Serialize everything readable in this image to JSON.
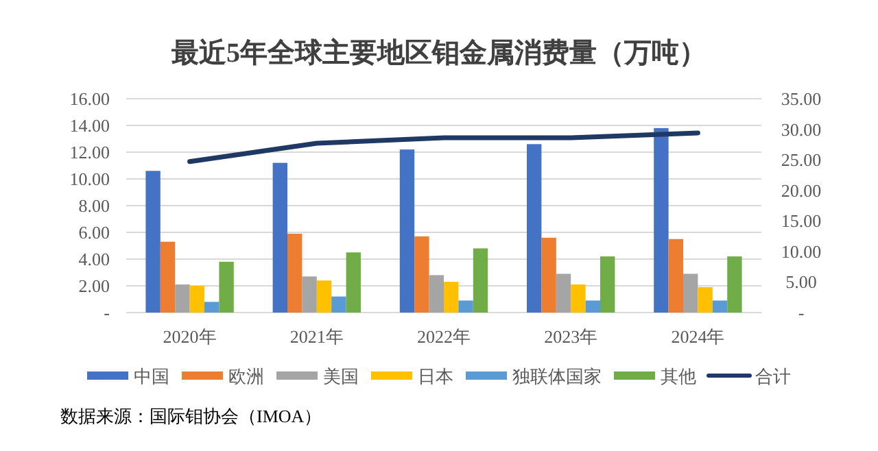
{
  "chart_data": {
    "type": "bar",
    "title": "最近5年全球主要地区钼金属消费量（万吨）",
    "categories": [
      "2020年",
      "2021年",
      "2022年",
      "2023年",
      "2024年"
    ],
    "series": [
      {
        "name": "中国",
        "color": "#4472c4",
        "values": [
          10.6,
          11.2,
          12.2,
          12.6,
          13.8
        ]
      },
      {
        "name": "欧洲",
        "color": "#ed7d31",
        "values": [
          5.3,
          5.9,
          5.7,
          5.6,
          5.5
        ]
      },
      {
        "name": "美国",
        "color": "#a5a5a5",
        "values": [
          2.1,
          2.7,
          2.8,
          2.9,
          2.9
        ]
      },
      {
        "name": "日本",
        "color": "#ffc000",
        "values": [
          2.0,
          2.4,
          2.3,
          2.1,
          1.9
        ]
      },
      {
        "name": "独联体国家",
        "color": "#5b9bd5",
        "values": [
          0.8,
          1.2,
          0.9,
          0.9,
          0.9
        ]
      },
      {
        "name": "其他",
        "color": "#70ad47",
        "values": [
          3.8,
          4.5,
          4.8,
          4.2,
          4.2
        ]
      },
      {
        "name": "合计",
        "color": "#203864",
        "type": "line",
        "axis": "y2",
        "values": [
          24.7,
          27.7,
          28.6,
          28.6,
          29.4
        ]
      }
    ],
    "ylim": [
      0,
      16
    ],
    "yticks": [
      {
        "value": 0,
        "label": "-"
      },
      {
        "value": 2,
        "label": "2.00"
      },
      {
        "value": 4,
        "label": "4.00"
      },
      {
        "value": 6,
        "label": "6.00"
      },
      {
        "value": 8,
        "label": "8.00"
      },
      {
        "value": 10,
        "label": "10.00"
      },
      {
        "value": 12,
        "label": "12.00"
      },
      {
        "value": 14,
        "label": "14.00"
      },
      {
        "value": 16,
        "label": "16.00"
      }
    ],
    "y2lim": [
      0,
      35
    ],
    "y2ticks": [
      {
        "value": 0,
        "label": "-"
      },
      {
        "value": 5,
        "label": "5.00"
      },
      {
        "value": 10,
        "label": "10.00"
      },
      {
        "value": 15,
        "label": "15.00"
      },
      {
        "value": 20,
        "label": "20.00"
      },
      {
        "value": 25,
        "label": "25.00"
      },
      {
        "value": 30,
        "label": "30.00"
      },
      {
        "value": 35,
        "label": "35.00"
      }
    ],
    "grid": "y",
    "legend": "bottom",
    "annotations": [
      "数据来源：国际钼协会（IMOA）"
    ]
  }
}
